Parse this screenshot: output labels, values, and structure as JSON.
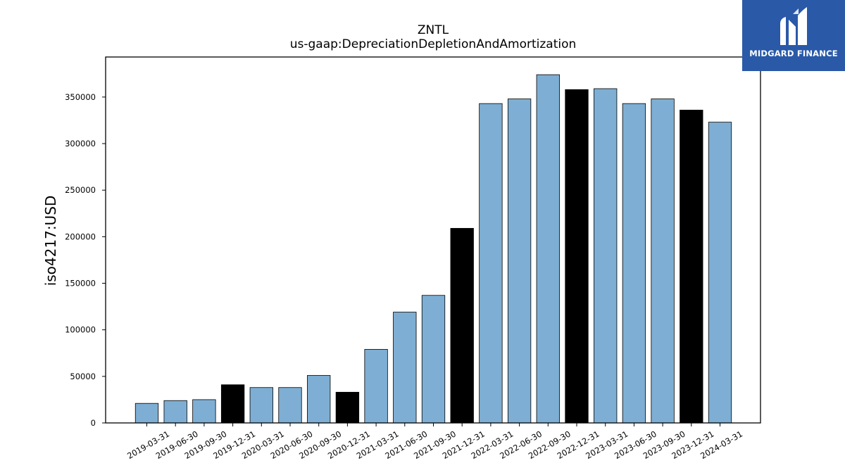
{
  "brand": {
    "name": "MIDGARD FINANCE",
    "icon": "midgard-logo-icon",
    "background": "#2a59a8"
  },
  "chart_data": {
    "type": "bar",
    "title": "ZNTL",
    "subtitle": "us-gaap:DepreciationDepletionAndAmortization",
    "xlabel": "",
    "ylabel": "iso4217:USD",
    "ylim": [
      0,
      393000
    ],
    "yticks": [
      0,
      50000,
      100000,
      150000,
      200000,
      250000,
      300000,
      350000
    ],
    "grid": false,
    "legend": "none",
    "colors": {
      "quarter": "#7eaed3",
      "year_end": "#000000",
      "edge": "#000000"
    },
    "categories": [
      "2019-03-31",
      "2019-06-30",
      "2019-09-30",
      "2019-12-31",
      "2020-03-31",
      "2020-06-30",
      "2020-09-30",
      "2020-12-31",
      "2021-03-31",
      "2021-06-30",
      "2021-09-30",
      "2021-12-31",
      "2022-03-31",
      "2022-06-30",
      "2022-09-30",
      "2022-12-31",
      "2023-03-31",
      "2023-06-30",
      "2023-09-30",
      "2023-12-31",
      "2024-03-31"
    ],
    "values": [
      21000,
      24000,
      25000,
      41000,
      38000,
      38000,
      51000,
      33000,
      79000,
      119000,
      137000,
      209000,
      343000,
      348000,
      374000,
      358000,
      359000,
      343000,
      348000,
      336000,
      323000
    ]
  }
}
